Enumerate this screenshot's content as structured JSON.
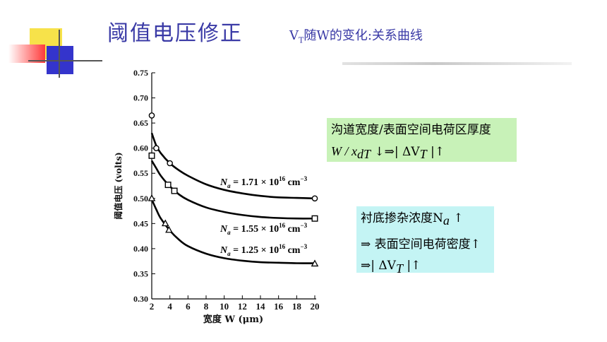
{
  "slide": {
    "title": "阈值电压修正",
    "subtitle_prefix": "V",
    "subtitle_sub": "T",
    "subtitle_rest": "随W的变化:关系曲线"
  },
  "box1": {
    "line1": "沟道宽度/表面空间电荷区厚度",
    "line2": "W / x",
    "line2_sub": "dT",
    "line2_rest": " ↓⇒| ΔV",
    "line2_sub2": "T",
    "line2_end": " |↑"
  },
  "box2": {
    "line1": "衬底掺杂浓度N",
    "line1_sub": "a",
    "line1_end": " ↑",
    "line2": "⇒ 表面空间电荷密度↑",
    "line3": "⇒| ΔV",
    "line3_sub": "T",
    "line3_end": " |↑"
  },
  "chart_data": {
    "type": "line",
    "xlabel": "宽度 W (μm)",
    "ylabel": "阈值电压 (volts)",
    "xlim": [
      2,
      20
    ],
    "ylim": [
      0.3,
      0.75
    ],
    "x_ticks": [
      "2",
      "4",
      "6",
      "8",
      "10",
      "12",
      "14",
      "16",
      "18",
      "20"
    ],
    "y_ticks": [
      "0.30",
      "0.35",
      "0.40",
      "0.45",
      "0.50",
      "0.55",
      "0.60",
      "0.65",
      "0.70",
      "0.75"
    ],
    "series": [
      {
        "name": "Na = 1.71 × 10^16 cm^-3",
        "label_main": "N",
        "label_sub": "a",
        "label_eq": " = 1.71 × 10",
        "label_exp": "16",
        "label_unit": " cm",
        "label_unit_exp": "−3",
        "marker": "circle",
        "points": [
          [
            2.0,
            0.665
          ],
          [
            2.5,
            0.6
          ],
          [
            4.0,
            0.57
          ],
          [
            20.0,
            0.5
          ]
        ],
        "curve": [
          [
            2.0,
            0.63
          ],
          [
            2.5,
            0.605
          ],
          [
            3,
            0.59
          ],
          [
            4,
            0.57
          ],
          [
            5,
            0.556
          ],
          [
            6,
            0.545
          ],
          [
            8,
            0.528
          ],
          [
            10,
            0.517
          ],
          [
            12,
            0.51
          ],
          [
            14,
            0.505
          ],
          [
            16,
            0.502
          ],
          [
            18,
            0.501
          ],
          [
            20,
            0.5
          ]
        ]
      },
      {
        "name": "Na = 1.55 × 10^16 cm^-3",
        "label_main": "N",
        "label_sub": "a",
        "label_eq": " = 1.55 × 10",
        "label_exp": "16",
        "label_unit": " cm",
        "label_unit_exp": "−3",
        "marker": "square",
        "points": [
          [
            2.0,
            0.585
          ],
          [
            3.8,
            0.527
          ],
          [
            4.5,
            0.515
          ],
          [
            20.0,
            0.46
          ]
        ],
        "curve": [
          [
            2.0,
            0.575
          ],
          [
            2.5,
            0.56
          ],
          [
            3,
            0.545
          ],
          [
            4,
            0.524
          ],
          [
            5,
            0.508
          ],
          [
            6,
            0.497
          ],
          [
            8,
            0.482
          ],
          [
            10,
            0.473
          ],
          [
            12,
            0.467
          ],
          [
            14,
            0.463
          ],
          [
            16,
            0.461
          ],
          [
            18,
            0.46
          ],
          [
            20,
            0.46
          ]
        ]
      },
      {
        "name": "Na = 1.25 × 10^16 cm^-3",
        "label_main": "N",
        "label_sub": "a",
        "label_eq": " = 1.25 × 10",
        "label_exp": "16",
        "label_unit": " cm",
        "label_unit_exp": "−3",
        "marker": "triangle",
        "points": [
          [
            2.0,
            0.5
          ],
          [
            3.5,
            0.45
          ],
          [
            3.9,
            0.437
          ],
          [
            20.0,
            0.37
          ]
        ],
        "curve": [
          [
            2.0,
            0.498
          ],
          [
            2.5,
            0.478
          ],
          [
            3,
            0.46
          ],
          [
            4,
            0.436
          ],
          [
            5,
            0.418
          ],
          [
            6,
            0.405
          ],
          [
            8,
            0.39
          ],
          [
            10,
            0.381
          ],
          [
            12,
            0.376
          ],
          [
            14,
            0.373
          ],
          [
            16,
            0.372
          ],
          [
            18,
            0.371
          ],
          [
            20,
            0.371
          ]
        ]
      }
    ]
  }
}
